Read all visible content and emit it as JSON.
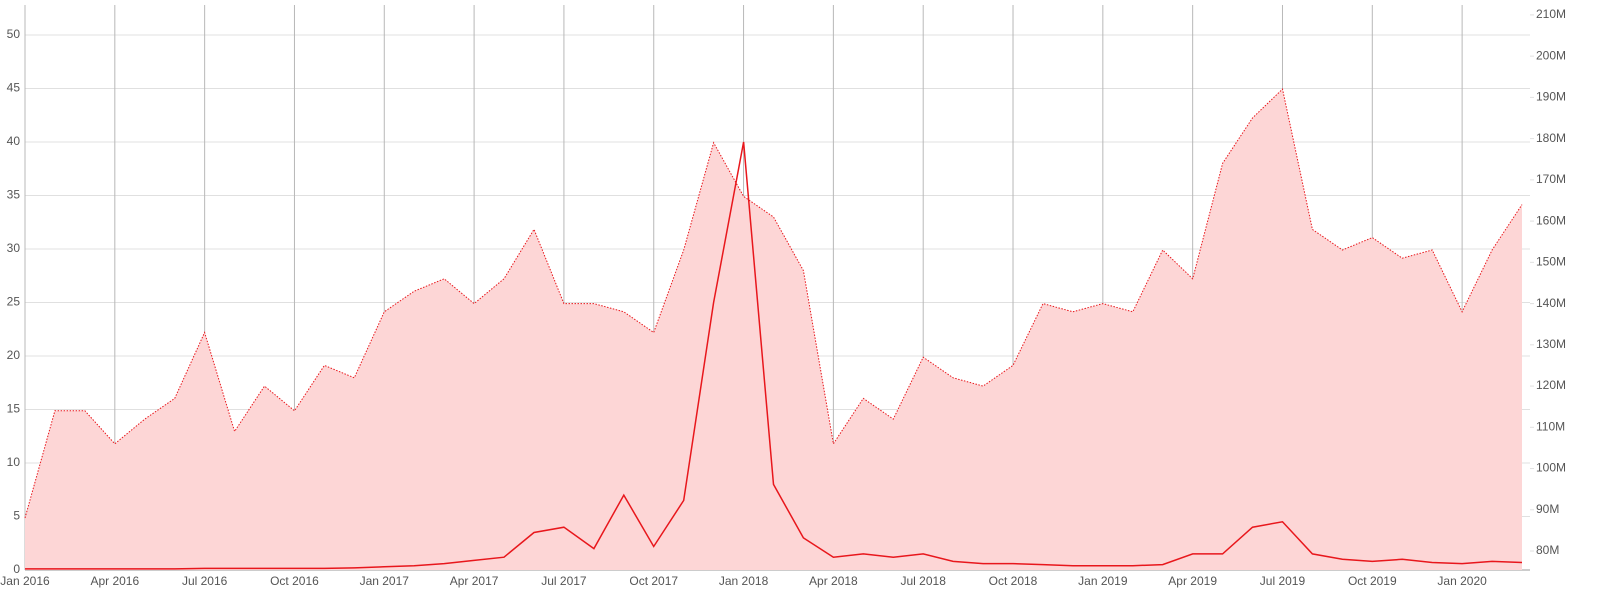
{
  "chart_data": {
    "type": "line",
    "categories": [
      "Jan 2016",
      null,
      null,
      "Apr 2016",
      null,
      null,
      "Jul 2016",
      null,
      null,
      "Oct 2016",
      null,
      null,
      "Jan 2017",
      null,
      null,
      "Apr 2017",
      null,
      null,
      "Jul 2017",
      null,
      null,
      "Oct 2017",
      null,
      null,
      "Jan 2018",
      null,
      null,
      "Apr 2018",
      null,
      null,
      "Jul 2018",
      null,
      null,
      "Oct 2018",
      null,
      null,
      "Jan 2019",
      null,
      null,
      "Apr 2019",
      null,
      null,
      "Jul 2019",
      null,
      null,
      "Oct 2019",
      null,
      null,
      "Jan 2020",
      null,
      null
    ],
    "series": [
      {
        "color": "#e8171c",
        "values": [
          0.1,
          0.1,
          0.1,
          0.1,
          0.1,
          0.1,
          0.15,
          0.15,
          0.15,
          0.15,
          0.15,
          0.2,
          0.3,
          0.4,
          0.6,
          0.9,
          1.2,
          3.5,
          4.0,
          2.0,
          7.0,
          2.2,
          6.5,
          25,
          40,
          8,
          3,
          1.2,
          1.5,
          1.2,
          1.5,
          0.8,
          0.6,
          0.6,
          0.5,
          0.4,
          0.4,
          0.4,
          0.5,
          1.5,
          1.5,
          4.0,
          4.5,
          1.5,
          1.0,
          0.8,
          1.0,
          0.7,
          0.6,
          0.8,
          0.7
        ]
      },
      {
        "color": "#e8171c",
        "fill": "#fdd6d6",
        "axis": "y2",
        "values": [
          88000000,
          114000000,
          114000000,
          106000000,
          112000000,
          117000000,
          133000000,
          109000000,
          120000000,
          114000000,
          125000000,
          122000000,
          138000000,
          143000000,
          146000000,
          140000000,
          146000000,
          158000000,
          140000000,
          140000000,
          138000000,
          133000000,
          153000000,
          179000000,
          166000000,
          161000000,
          148000000,
          106000000,
          117000000,
          112000000,
          127000000,
          122000000,
          120000000,
          125000000,
          140000000,
          138000000,
          140000000,
          138000000,
          153000000,
          146000000,
          174000000,
          185000000,
          192000000,
          158000000,
          153000000,
          156000000,
          151000000,
          153000000,
          138000000,
          153000000,
          164000000
        ]
      }
    ],
    "ylim": [
      0,
      52.8
    ],
    "yticks": [
      0,
      5,
      10,
      15,
      20,
      25,
      30,
      35,
      40,
      45,
      50
    ],
    "y2lim": [
      75400000,
      212400000
    ],
    "y2ticks": [
      {
        "value": 80000000,
        "label": "80M"
      },
      {
        "value": 90000000,
        "label": "90M"
      },
      {
        "value": 100000000,
        "label": "100M"
      },
      {
        "value": 110000000,
        "label": "110M"
      },
      {
        "value": 120000000,
        "label": "120M"
      },
      {
        "value": 130000000,
        "label": "130M"
      },
      {
        "value": 140000000,
        "label": "140M"
      },
      {
        "value": 150000000,
        "label": "150M"
      },
      {
        "value": 160000000,
        "label": "160M"
      },
      {
        "value": 170000000,
        "label": "170M"
      },
      {
        "value": 180000000,
        "label": "180M"
      },
      {
        "value": 190000000,
        "label": "190M"
      },
      {
        "value": 200000000,
        "label": "200M"
      },
      {
        "value": 210000000,
        "label": "210M"
      }
    ],
    "grid": true
  }
}
